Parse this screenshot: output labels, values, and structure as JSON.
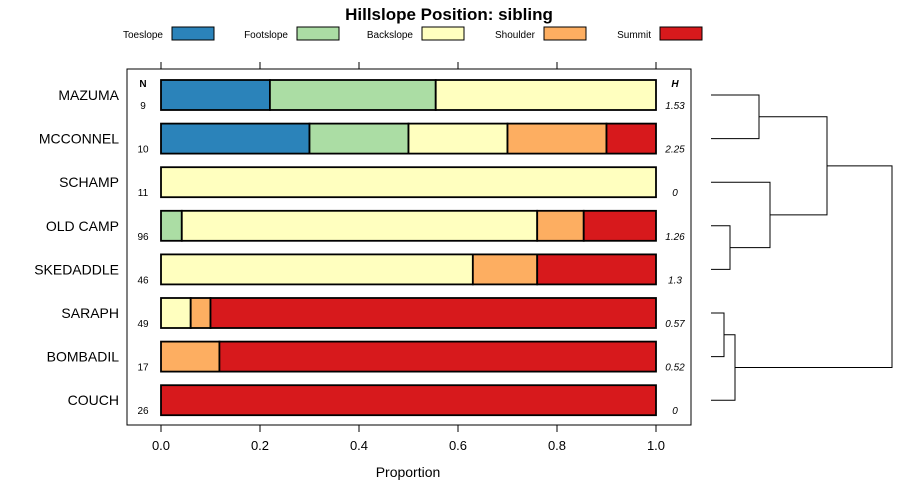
{
  "chart_data": {
    "type": "stacked-bar",
    "orientation": "horizontal",
    "title": "Hillslope Position: sibling",
    "xlabel": "Proportion",
    "xlim": [
      0,
      1
    ],
    "xticks": [
      "0.0",
      "0.2",
      "0.4",
      "0.6",
      "0.8",
      "1.0"
    ],
    "n_header": "N",
    "h_header": "H",
    "legend": [
      {
        "name": "Toeslope",
        "color": "#2B83BA"
      },
      {
        "name": "Footslope",
        "color": "#ABDDA4"
      },
      {
        "name": "Backslope",
        "color": "#FFFFBF"
      },
      {
        "name": "Shoulder",
        "color": "#FDAE61"
      },
      {
        "name": "Summit",
        "color": "#D7191C"
      }
    ],
    "categories": [
      "MAZUMA",
      "MCCONNEL",
      "SCHAMP",
      "OLD CAMP",
      "SKEDADDLE",
      "SARAPH",
      "BOMBADIL",
      "COUCH"
    ],
    "n": [
      "9",
      "10",
      "11",
      "96",
      "46",
      "49",
      "17",
      "26"
    ],
    "h": [
      "1.53",
      "2.25",
      "0",
      "1.26",
      "1.3",
      "0.57",
      "0.52",
      "0"
    ],
    "series": [
      {
        "name": "Toeslope",
        "values": [
          0.22,
          0.3,
          0,
          0,
          0,
          0,
          0,
          0
        ]
      },
      {
        "name": "Footslope",
        "values": [
          0.335,
          0.2,
          0,
          0.042,
          0,
          0,
          0,
          0
        ]
      },
      {
        "name": "Backslope",
        "values": [
          0.445,
          0.2,
          1.0,
          0.718,
          0.63,
          0.06,
          0,
          0
        ]
      },
      {
        "name": "Shoulder",
        "values": [
          0,
          0.2,
          0,
          0.094,
          0.13,
          0.04,
          0.118,
          0
        ]
      },
      {
        "name": "Summit",
        "values": [
          0,
          0.1,
          0,
          0.146,
          0.24,
          0.9,
          0.882,
          1.0
        ]
      }
    ],
    "dendrogram": "clustering of sites by hillslope position (right side)"
  }
}
